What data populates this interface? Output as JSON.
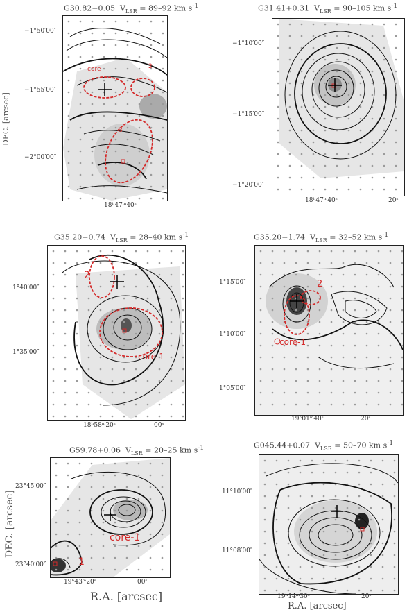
{
  "panels": [
    {
      "name": "G30.82−0.05",
      "vlsr": "= 89–92 km s",
      "ra_ticks": [
        "18ʰ47ᵐ40ˢ"
      ],
      "dec_ticks": [
        "−1°50′00″",
        "−1°55′00″",
        "−2°00′00″"
      ],
      "cores": [
        "core",
        "2",
        "3"
      ]
    },
    {
      "name": "G31.41+0.31",
      "vlsr": "= 90–105 km s",
      "ra_ticks": [
        "18ʰ47ᵐ40ˢ",
        "20ˢ"
      ],
      "dec_ticks": [
        "−1°10′00″",
        "−1°15′00″",
        "−1°20′00″"
      ],
      "cores": []
    },
    {
      "name": "G35.20−0.74",
      "vlsr": "= 28–40 km s",
      "ra_ticks": [
        "18ʰ58ᵐ20ˢ",
        "00ˢ"
      ],
      "dec_ticks": [
        "1°40′00″",
        "1°35′00″"
      ],
      "cores": [
        "2",
        "core-1"
      ]
    },
    {
      "name": "G35.20−1.74",
      "vlsr": "= 32–52 km s",
      "ra_ticks": [
        "19ʰ01ᵐ40ˢ",
        "20ˢ"
      ],
      "dec_ticks": [
        "1°15′00″",
        "1°10′00″",
        "1°05′00″"
      ],
      "cores": [
        "2",
        "core-1"
      ]
    },
    {
      "name": "G59.78+0.06",
      "vlsr": "= 20–25 km s",
      "ra_ticks": [
        "19ʰ43ᵐ20ˢ",
        "00ˢ"
      ],
      "dec_ticks": [
        "23°45′00″",
        "23°40′00″"
      ],
      "cores": [
        "core-1",
        "1"
      ]
    },
    {
      "name": "G045.44+0.07",
      "vlsr": "= 50–70 km s",
      "ra_ticks": [
        "19ʰ14ᵐ30ˢ",
        "20ˢ"
      ],
      "dec_ticks": [
        "11°10′00″",
        "11°08′00″"
      ],
      "cores": []
    }
  ],
  "vlsr_label": "V",
  "vlsr_sub": "LSR",
  "vlsr_sup": "-1",
  "axes": {
    "dec_top": "DEC. [arcsec]",
    "dec_bottom": "DEC. [arcsec]",
    "ra_left": "R.A. [arcsec]",
    "ra_right": "R.A. [arcsec]"
  },
  "colors": {
    "contour": "#111111",
    "core_ellipse": "#d42a2a",
    "grid_dot": "#9a9a9a",
    "greyscale": "#c8c8c8"
  }
}
